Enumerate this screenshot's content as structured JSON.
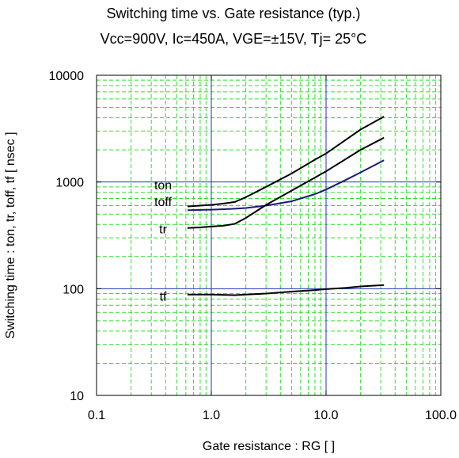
{
  "chart_data": {
    "type": "line",
    "title": "Switching time  vs.  Gate resistance  (typ.)",
    "subtitle": "Vcc=900V, Ic=450A, VGE=±15V, Tj= 25°C",
    "xlabel": "Gate resistance : RG [   ]",
    "ylabel": "Switching time  :  ton, tr, toff, tf  [ nsec ]",
    "x_scale": "log",
    "y_scale": "log",
    "xlim": [
      0.1,
      100
    ],
    "ylim": [
      10,
      10000
    ],
    "x_ticks": [
      0.1,
      1,
      10,
      100
    ],
    "x_tick_labels": [
      "0.1",
      "1.0",
      "10.0",
      "100.0"
    ],
    "y_ticks": [
      10,
      100,
      1000,
      10000
    ],
    "y_tick_labels": [
      "10",
      "100",
      "1000",
      "10000"
    ],
    "grid": true,
    "major_grid_color": "#2233bb",
    "minor_grid_color": "#33dd33",
    "series": [
      {
        "name": "ton",
        "color": "#000000",
        "x": [
          0.62,
          0.8,
          1.0,
          1.3,
          1.6,
          2.0,
          3.0,
          5.0,
          8.0,
          10.0,
          15.0,
          20.0,
          32.0
        ],
        "y": [
          590,
          600,
          610,
          630,
          650,
          720,
          900,
          1200,
          1620,
          1850,
          2500,
          3100,
          4100
        ]
      },
      {
        "name": "toff",
        "color": "#1a1a7a",
        "x": [
          0.62,
          1.0,
          1.5,
          2.0,
          3.0,
          5.0,
          8.0,
          10.0,
          15.0,
          20.0,
          32.0
        ],
        "y": [
          545,
          550,
          560,
          570,
          600,
          660,
          770,
          850,
          1050,
          1230,
          1600
        ]
      },
      {
        "name": "tr",
        "color": "#000000",
        "x": [
          0.62,
          0.8,
          1.0,
          1.3,
          1.6,
          2.0,
          3.0,
          5.0,
          8.0,
          10.0,
          15.0,
          20.0,
          32.0
        ],
        "y": [
          370,
          375,
          382,
          390,
          405,
          460,
          610,
          830,
          1100,
          1260,
          1650,
          2000,
          2600
        ]
      },
      {
        "name": "tf",
        "color": "#000000",
        "x": [
          0.62,
          1.0,
          1.6,
          2.0,
          3.0,
          5.0,
          8.0,
          10.0,
          15.0,
          20.0,
          32.0
        ],
        "y": [
          88,
          88,
          87,
          88,
          90,
          94,
          97,
          99,
          102,
          105,
          108
        ]
      }
    ],
    "series_labels": [
      {
        "text": "ton",
        "x": 0.38,
        "y": 920
      },
      {
        "text": "toff",
        "x": 0.38,
        "y": 640
      },
      {
        "text": "tr",
        "x": 0.38,
        "y": 355
      },
      {
        "text": "tf",
        "x": 0.38,
        "y": 83
      }
    ]
  }
}
